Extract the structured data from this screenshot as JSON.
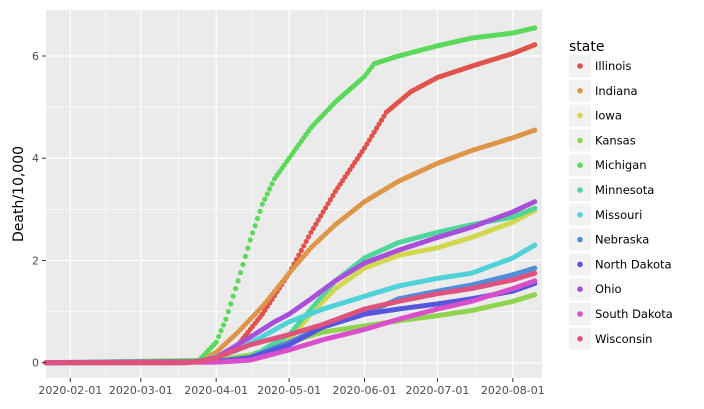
{
  "chart_data": {
    "type": "scatter",
    "title": "",
    "xlabel": "",
    "ylabel": "Death/10,000",
    "xlim": [
      "2020-01-22",
      "2020-08-13"
    ],
    "ylim": [
      -0.3,
      6.9
    ],
    "x_ticks": [
      "2020-02-01",
      "2020-03-01",
      "2020-04-01",
      "2020-05-01",
      "2020-06-01",
      "2020-07-01",
      "2020-08-01"
    ],
    "x_tick_labels": [
      "2020-02-01",
      "2020-03-01",
      "2020-04-01",
      "2020-05-01",
      "2020-06-01",
      "2020-07-01",
      "2020-08-01"
    ],
    "y_ticks": [
      0,
      2,
      4,
      6
    ],
    "y_tick_labels": [
      "0",
      "2",
      "4",
      "6"
    ],
    "grid": true,
    "panel_background": "#EBEBEB",
    "grid_color": "#FFFFFF",
    "legend_title": "state",
    "legend_position": "right",
    "series": [
      {
        "name": "Illinois",
        "color": "#E0524C",
        "points": [
          [
            "2020-01-22",
            0
          ],
          [
            "2020-03-15",
            0
          ],
          [
            "2020-03-25",
            0.02
          ],
          [
            "2020-04-01",
            0.1
          ],
          [
            "2020-04-10",
            0.35
          ],
          [
            "2020-04-20",
            0.95
          ],
          [
            "2020-05-01",
            1.75
          ],
          [
            "2020-05-10",
            2.55
          ],
          [
            "2020-05-20",
            3.35
          ],
          [
            "2020-06-01",
            4.2
          ],
          [
            "2020-06-10",
            4.9
          ],
          [
            "2020-06-20",
            5.3
          ],
          [
            "2020-07-01",
            5.58
          ],
          [
            "2020-07-15",
            5.8
          ],
          [
            "2020-08-01",
            6.05
          ],
          [
            "2020-08-10",
            6.22
          ]
        ]
      },
      {
        "name": "Indiana",
        "color": "#DE9549",
        "points": [
          [
            "2020-01-22",
            0
          ],
          [
            "2020-03-15",
            0
          ],
          [
            "2020-03-25",
            0.04
          ],
          [
            "2020-04-01",
            0.2
          ],
          [
            "2020-04-10",
            0.6
          ],
          [
            "2020-04-20",
            1.1
          ],
          [
            "2020-05-01",
            1.75
          ],
          [
            "2020-05-10",
            2.25
          ],
          [
            "2020-05-20",
            2.7
          ],
          [
            "2020-06-01",
            3.15
          ],
          [
            "2020-06-15",
            3.55
          ],
          [
            "2020-07-01",
            3.9
          ],
          [
            "2020-07-15",
            4.15
          ],
          [
            "2020-08-01",
            4.4
          ],
          [
            "2020-08-10",
            4.55
          ]
        ]
      },
      {
        "name": "Iowa",
        "color": "#D2D84D",
        "points": [
          [
            "2020-01-22",
            0
          ],
          [
            "2020-04-01",
            0.02
          ],
          [
            "2020-04-15",
            0.1
          ],
          [
            "2020-05-01",
            0.45
          ],
          [
            "2020-05-10",
            0.95
          ],
          [
            "2020-05-20",
            1.45
          ],
          [
            "2020-06-01",
            1.85
          ],
          [
            "2020-06-15",
            2.1
          ],
          [
            "2020-07-01",
            2.25
          ],
          [
            "2020-07-15",
            2.45
          ],
          [
            "2020-08-01",
            2.75
          ],
          [
            "2020-08-10",
            2.98
          ]
        ]
      },
      {
        "name": "Kansas",
        "color": "#8FD44F",
        "points": [
          [
            "2020-01-22",
            0
          ],
          [
            "2020-04-01",
            0.05
          ],
          [
            "2020-04-15",
            0.15
          ],
          [
            "2020-05-01",
            0.4
          ],
          [
            "2020-05-15",
            0.6
          ],
          [
            "2020-06-01",
            0.72
          ],
          [
            "2020-06-15",
            0.82
          ],
          [
            "2020-07-01",
            0.92
          ],
          [
            "2020-07-15",
            1.02
          ],
          [
            "2020-08-01",
            1.2
          ],
          [
            "2020-08-10",
            1.33
          ]
        ]
      },
      {
        "name": "Michigan",
        "color": "#5AD95A",
        "points": [
          [
            "2020-01-22",
            0
          ],
          [
            "2020-03-20",
            0
          ],
          [
            "2020-03-25",
            0.05
          ],
          [
            "2020-04-01",
            0.4
          ],
          [
            "2020-04-05",
            0.85
          ],
          [
            "2020-04-10",
            1.6
          ],
          [
            "2020-04-15",
            2.4
          ],
          [
            "2020-04-20",
            3.1
          ],
          [
            "2020-04-25",
            3.6
          ],
          [
            "2020-05-01",
            4.0
          ],
          [
            "2020-05-10",
            4.6
          ],
          [
            "2020-05-20",
            5.1
          ],
          [
            "2020-06-01",
            5.6
          ],
          [
            "2020-06-05",
            5.85
          ],
          [
            "2020-06-15",
            6.0
          ],
          [
            "2020-07-01",
            6.2
          ],
          [
            "2020-07-15",
            6.35
          ],
          [
            "2020-08-01",
            6.45
          ],
          [
            "2020-08-10",
            6.55
          ]
        ]
      },
      {
        "name": "Minnesota",
        "color": "#4ED69B",
        "points": [
          [
            "2020-01-22",
            0
          ],
          [
            "2020-04-01",
            0.02
          ],
          [
            "2020-04-15",
            0.1
          ],
          [
            "2020-05-01",
            0.55
          ],
          [
            "2020-05-10",
            1.05
          ],
          [
            "2020-05-20",
            1.6
          ],
          [
            "2020-06-01",
            2.05
          ],
          [
            "2020-06-15",
            2.35
          ],
          [
            "2020-07-01",
            2.55
          ],
          [
            "2020-07-15",
            2.7
          ],
          [
            "2020-08-01",
            2.85
          ],
          [
            "2020-08-10",
            3.02
          ]
        ]
      },
      {
        "name": "Missouri",
        "color": "#4FD2D9",
        "points": [
          [
            "2020-01-22",
            0
          ],
          [
            "2020-03-25",
            0.02
          ],
          [
            "2020-04-10",
            0.25
          ],
          [
            "2020-05-01",
            0.8
          ],
          [
            "2020-05-15",
            1.05
          ],
          [
            "2020-06-01",
            1.3
          ],
          [
            "2020-06-15",
            1.5
          ],
          [
            "2020-07-01",
            1.65
          ],
          [
            "2020-07-15",
            1.75
          ],
          [
            "2020-08-01",
            2.05
          ],
          [
            "2020-08-10",
            2.3
          ]
        ]
      },
      {
        "name": "Nebraska",
        "color": "#4F8ED9",
        "points": [
          [
            "2020-01-22",
            0
          ],
          [
            "2020-04-01",
            0.02
          ],
          [
            "2020-04-15",
            0.1
          ],
          [
            "2020-05-01",
            0.4
          ],
          [
            "2020-05-15",
            0.7
          ],
          [
            "2020-06-01",
            0.95
          ],
          [
            "2020-06-15",
            1.25
          ],
          [
            "2020-07-01",
            1.4
          ],
          [
            "2020-07-15",
            1.52
          ],
          [
            "2020-08-01",
            1.72
          ],
          [
            "2020-08-10",
            1.85
          ]
        ]
      },
      {
        "name": "North Dakota",
        "color": "#5555DD",
        "points": [
          [
            "2020-01-22",
            0
          ],
          [
            "2020-04-01",
            0.02
          ],
          [
            "2020-04-15",
            0.1
          ],
          [
            "2020-05-01",
            0.35
          ],
          [
            "2020-05-15",
            0.7
          ],
          [
            "2020-06-01",
            0.95
          ],
          [
            "2020-06-15",
            1.05
          ],
          [
            "2020-07-01",
            1.15
          ],
          [
            "2020-07-15",
            1.25
          ],
          [
            "2020-08-01",
            1.4
          ],
          [
            "2020-08-10",
            1.55
          ]
        ]
      },
      {
        "name": "Ohio",
        "color": "#A74FD9",
        "points": [
          [
            "2020-01-22",
            0
          ],
          [
            "2020-03-20",
            0
          ],
          [
            "2020-03-25",
            0.03
          ],
          [
            "2020-04-01",
            0.1
          ],
          [
            "2020-04-15",
            0.5
          ],
          [
            "2020-04-25",
            0.8
          ],
          [
            "2020-05-01",
            0.95
          ],
          [
            "2020-05-10",
            1.25
          ],
          [
            "2020-05-20",
            1.6
          ],
          [
            "2020-06-01",
            1.95
          ],
          [
            "2020-06-15",
            2.2
          ],
          [
            "2020-07-01",
            2.45
          ],
          [
            "2020-07-15",
            2.65
          ],
          [
            "2020-08-01",
            2.95
          ],
          [
            "2020-08-10",
            3.15
          ]
        ]
      },
      {
        "name": "South Dakota",
        "color": "#D94FCB",
        "points": [
          [
            "2020-01-22",
            0
          ],
          [
            "2020-04-01",
            0.01
          ],
          [
            "2020-04-15",
            0.05
          ],
          [
            "2020-05-01",
            0.25
          ],
          [
            "2020-05-15",
            0.45
          ],
          [
            "2020-06-01",
            0.65
          ],
          [
            "2020-06-15",
            0.85
          ],
          [
            "2020-07-01",
            1.05
          ],
          [
            "2020-07-15",
            1.2
          ],
          [
            "2020-08-01",
            1.45
          ],
          [
            "2020-08-10",
            1.6
          ]
        ]
      },
      {
        "name": "Wisconsin",
        "color": "#E0527E",
        "points": [
          [
            "2020-01-22",
            0
          ],
          [
            "2020-03-20",
            0
          ],
          [
            "2020-03-25",
            0.02
          ],
          [
            "2020-04-01",
            0.1
          ],
          [
            "2020-04-15",
            0.35
          ],
          [
            "2020-05-01",
            0.55
          ],
          [
            "2020-05-15",
            0.75
          ],
          [
            "2020-06-01",
            1.05
          ],
          [
            "2020-06-15",
            1.2
          ],
          [
            "2020-07-01",
            1.35
          ],
          [
            "2020-07-15",
            1.45
          ],
          [
            "2020-08-01",
            1.62
          ],
          [
            "2020-08-10",
            1.75
          ]
        ]
      }
    ]
  }
}
